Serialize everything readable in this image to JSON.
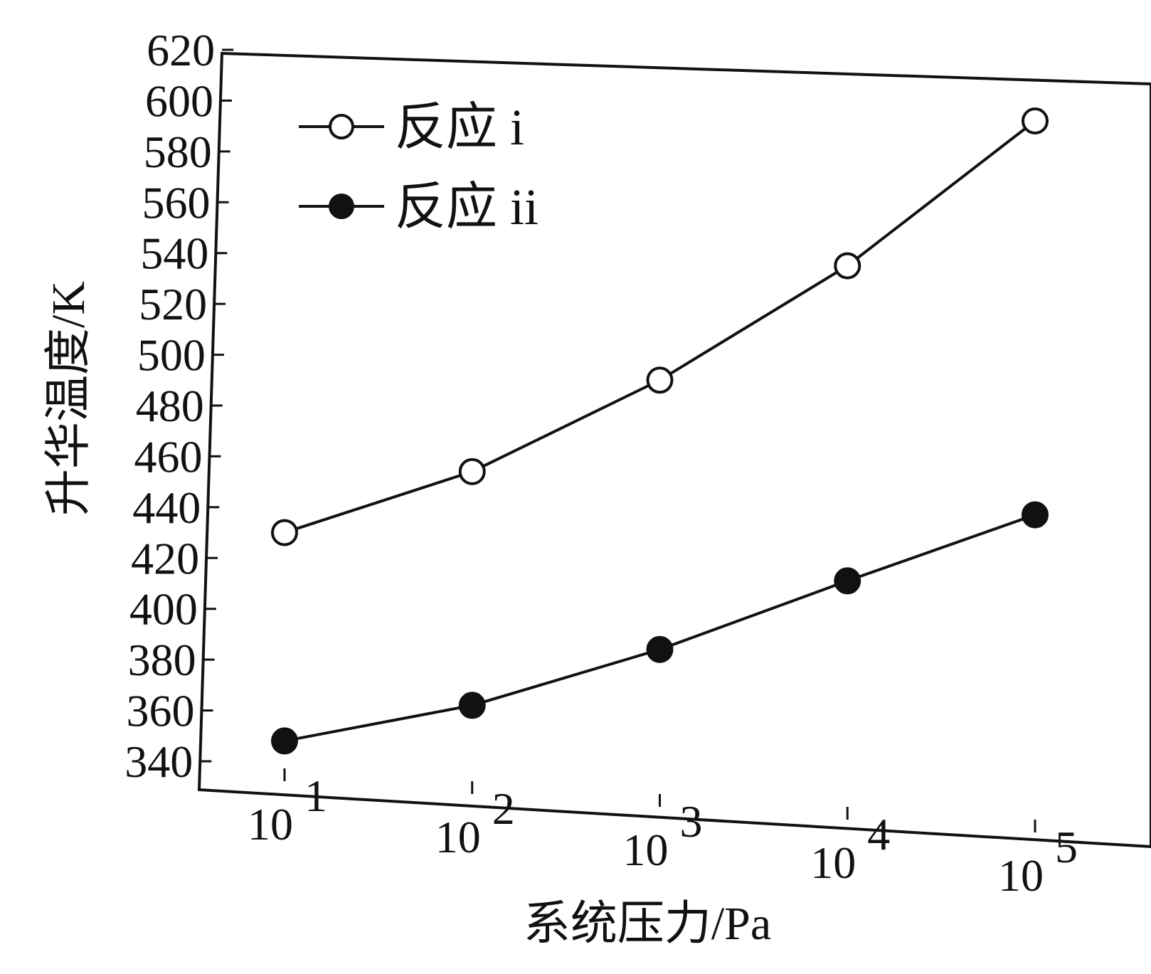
{
  "chart_data": {
    "type": "line",
    "xlabel": "系统压力/Pa",
    "ylabel": "升华温度/K",
    "x_scale": "log",
    "x_ticks": [
      10,
      100,
      1000,
      10000,
      100000
    ],
    "x_tick_labels": [
      {
        "base": "10",
        "exp": "1"
      },
      {
        "base": "10",
        "exp": "2"
      },
      {
        "base": "10",
        "exp": "3"
      },
      {
        "base": "10",
        "exp": "4"
      },
      {
        "base": "10",
        "exp": "5"
      }
    ],
    "ylim": [
      340,
      620
    ],
    "y_ticks": [
      340,
      360,
      380,
      400,
      420,
      440,
      460,
      480,
      500,
      520,
      540,
      560,
      580,
      600,
      620
    ],
    "grid": false,
    "legend_position": "top-left",
    "series": [
      {
        "name": "反应 i",
        "marker": "open-circle",
        "x": [
          10,
          100,
          1000,
          10000,
          100000
        ],
        "values": [
          430,
          454,
          490,
          535,
          592
        ]
      },
      {
        "name": "反应 ii",
        "marker": "filled-circle",
        "x": [
          10,
          100,
          1000,
          10000,
          100000
        ],
        "values": [
          348,
          362,
          384,
          411,
          437
        ]
      }
    ]
  },
  "colors": {
    "line": "#111111",
    "open_marker_fill": "#ffffff",
    "filled_marker_fill": "#111111",
    "background": "#ffffff"
  }
}
